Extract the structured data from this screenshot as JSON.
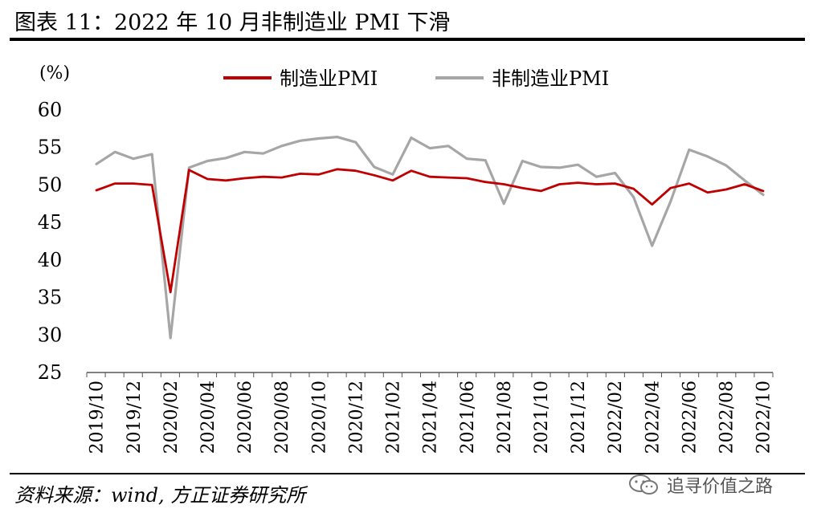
{
  "header": {
    "title": "图表 11：2022 年 10 月非制造业 PMI 下滑"
  },
  "footer": {
    "source": "资料来源：wind, 方正证券研究所",
    "watermark": "追寻价值之路"
  },
  "icons": {
    "watermark_icon": "wechat-icon"
  },
  "colors": {
    "manufacturing": "#C00000",
    "non_manufacturing": "#A6A6A6"
  },
  "chart_data": {
    "type": "line",
    "title": "",
    "xlabel": "",
    "ylabel": "(%)",
    "ylim": [
      25,
      60
    ],
    "yticks": [
      25,
      30,
      35,
      40,
      45,
      50,
      55,
      60
    ],
    "grid": false,
    "legend_position": "top-center",
    "x": [
      "2019/10",
      "2019/11",
      "2019/12",
      "2020/01",
      "2020/02",
      "2020/03",
      "2020/04",
      "2020/05",
      "2020/06",
      "2020/07",
      "2020/08",
      "2020/09",
      "2020/10",
      "2020/11",
      "2020/12",
      "2021/01",
      "2021/02",
      "2021/03",
      "2021/04",
      "2021/05",
      "2021/06",
      "2021/07",
      "2021/08",
      "2021/09",
      "2021/10",
      "2021/11",
      "2021/12",
      "2022/01",
      "2022/02",
      "2022/03",
      "2022/04",
      "2022/05",
      "2022/06",
      "2022/07",
      "2022/08",
      "2022/09",
      "2022/10"
    ],
    "x_tick_labels": [
      "2019/10",
      "2019/12",
      "2020/02",
      "2020/04",
      "2020/06",
      "2020/08",
      "2020/10",
      "2020/12",
      "2021/02",
      "2021/04",
      "2021/06",
      "2021/08",
      "2021/10",
      "2021/12",
      "2022/02",
      "2022/04",
      "2022/06",
      "2022/08",
      "2022/10"
    ],
    "series": [
      {
        "name": "制造业PMI",
        "color": "#C00000",
        "values": [
          49.3,
          50.2,
          50.2,
          50.0,
          35.7,
          52.0,
          50.8,
          50.6,
          50.9,
          51.1,
          51.0,
          51.5,
          51.4,
          52.1,
          51.9,
          51.3,
          50.6,
          51.9,
          51.1,
          51.0,
          50.9,
          50.4,
          50.1,
          49.6,
          49.2,
          50.1,
          50.3,
          50.1,
          50.2,
          49.5,
          47.4,
          49.6,
          50.2,
          49.0,
          49.4,
          50.1,
          49.2
        ]
      },
      {
        "name": "非制造业PMI",
        "color": "#A6A6A6",
        "values": [
          52.8,
          54.4,
          53.5,
          54.1,
          29.6,
          52.3,
          53.2,
          53.6,
          54.4,
          54.2,
          55.2,
          55.9,
          56.2,
          56.4,
          55.7,
          52.4,
          51.4,
          56.3,
          54.9,
          55.2,
          53.5,
          53.3,
          47.5,
          53.2,
          52.4,
          52.3,
          52.7,
          51.1,
          51.6,
          48.4,
          41.9,
          47.8,
          54.7,
          53.8,
          52.6,
          50.6,
          48.7
        ]
      }
    ]
  }
}
